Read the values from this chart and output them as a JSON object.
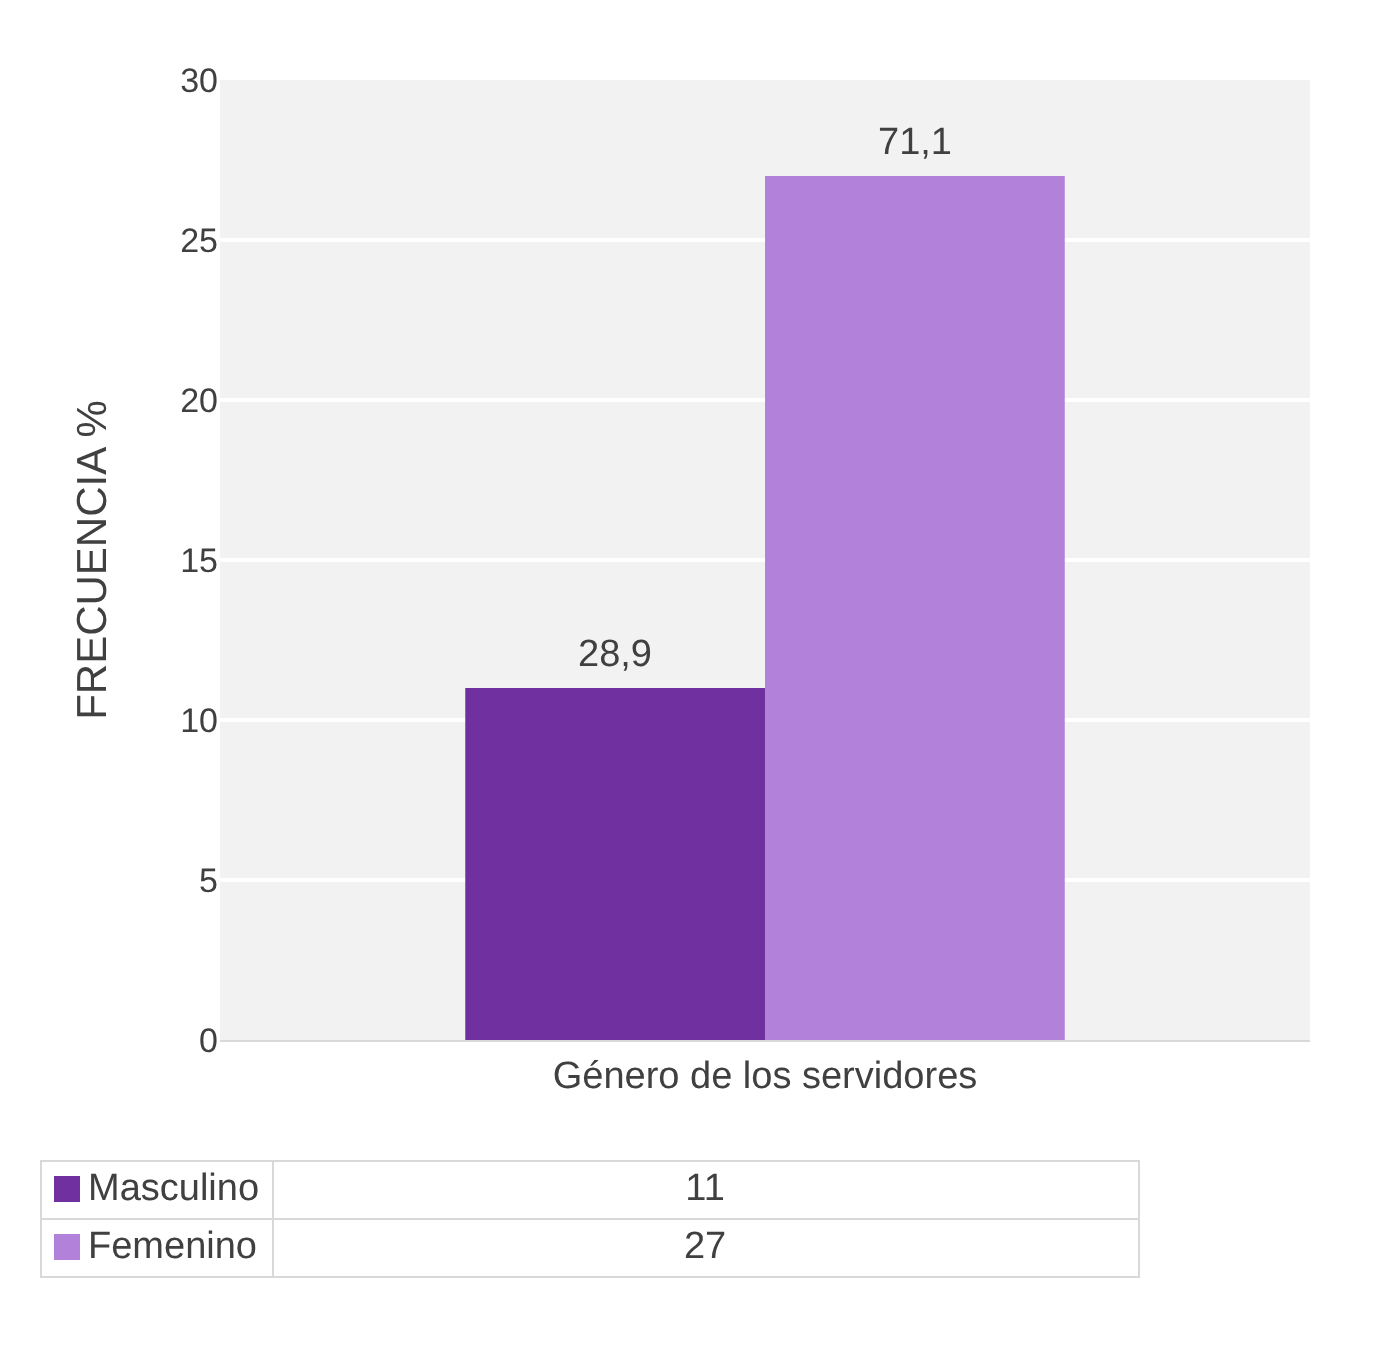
{
  "chart_data": {
    "type": "bar",
    "ylabel": "FRECUENCIA %",
    "categories": [
      "Género de los servidores"
    ],
    "series": [
      {
        "name": "Masculino",
        "color": "#7030a0",
        "values": [
          11
        ]
      },
      {
        "name": "Femenino",
        "color": "#b281d9",
        "values": [
          27
        ]
      }
    ],
    "annotations": [
      {
        "text": "28,9",
        "x": "Género de los servidores",
        "y": 11
      },
      {
        "text": "71,1",
        "x": "Género de los servidores",
        "y": 27
      },
      "11",
      "27"
    ],
    "ylim": [
      0,
      30
    ],
    "yticks": [
      0,
      5,
      10,
      15,
      20,
      25,
      30
    ],
    "grid": "y",
    "legend": "bottom"
  }
}
